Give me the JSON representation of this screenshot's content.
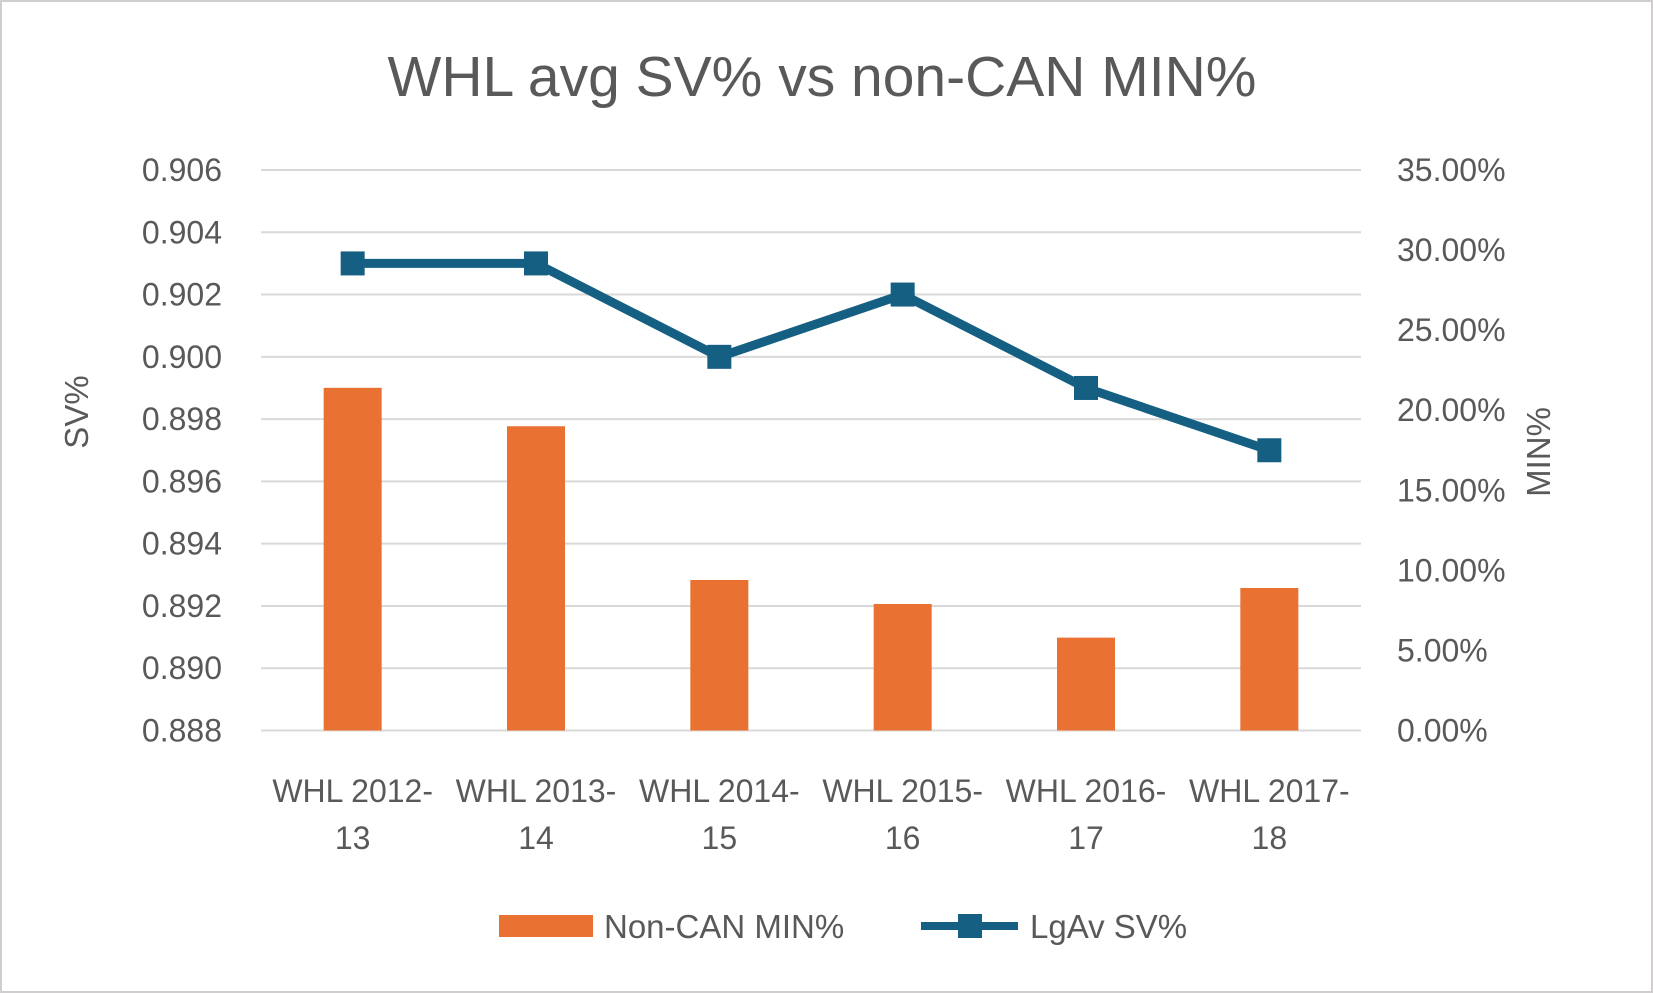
{
  "chart_data": {
    "type": "combo_bar_line",
    "title": "WHL avg SV% vs non-CAN MIN%",
    "categories": [
      "WHL 2012-13",
      "WHL 2013-14",
      "WHL 2014-15",
      "WHL 2015-16",
      "WHL 2016-17",
      "WHL 2017-18"
    ],
    "category_tick_lines": [
      [
        "WHL 2012-",
        "13"
      ],
      [
        "WHL 2013-",
        "14"
      ],
      [
        "WHL 2014-",
        "15"
      ],
      [
        "WHL 2015-",
        "16"
      ],
      [
        "WHL 2016-",
        "17"
      ],
      [
        "WHL 2017-",
        "18"
      ]
    ],
    "series": [
      {
        "name": "Non-CAN MIN%",
        "type": "bar",
        "axis": "right",
        "unit": "%",
        "values": [
          21.4,
          19.0,
          9.4,
          7.9,
          5.8,
          8.9
        ]
      },
      {
        "name": "LgAv SV%",
        "type": "line",
        "axis": "left",
        "values": [
          0.903,
          0.903,
          0.9,
          0.902,
          0.899,
          0.897
        ]
      }
    ],
    "left_axis": {
      "title": "SV%",
      "min": 0.888,
      "max": 0.906,
      "step": 0.002,
      "ticks": [
        "0.888",
        "0.890",
        "0.892",
        "0.894",
        "0.896",
        "0.898",
        "0.900",
        "0.902",
        "0.904",
        "0.906"
      ]
    },
    "right_axis": {
      "title": "MIN%",
      "min": 0,
      "max": 35,
      "step": 5,
      "ticks": [
        "0.00%",
        "5.00%",
        "10.00%",
        "15.00%",
        "20.00%",
        "25.00%",
        "30.00%",
        "35.00%"
      ]
    },
    "legend": {
      "position": "bottom",
      "entries": [
        "Non-CAN MIN%",
        "LgAv SV%"
      ]
    },
    "grid": true
  },
  "colors": {
    "bar": "#E97132",
    "line": "#156082",
    "text": "#595959",
    "grid": "#D9D9D9",
    "border": "#D0CECE",
    "background": "#FFFFFF"
  }
}
